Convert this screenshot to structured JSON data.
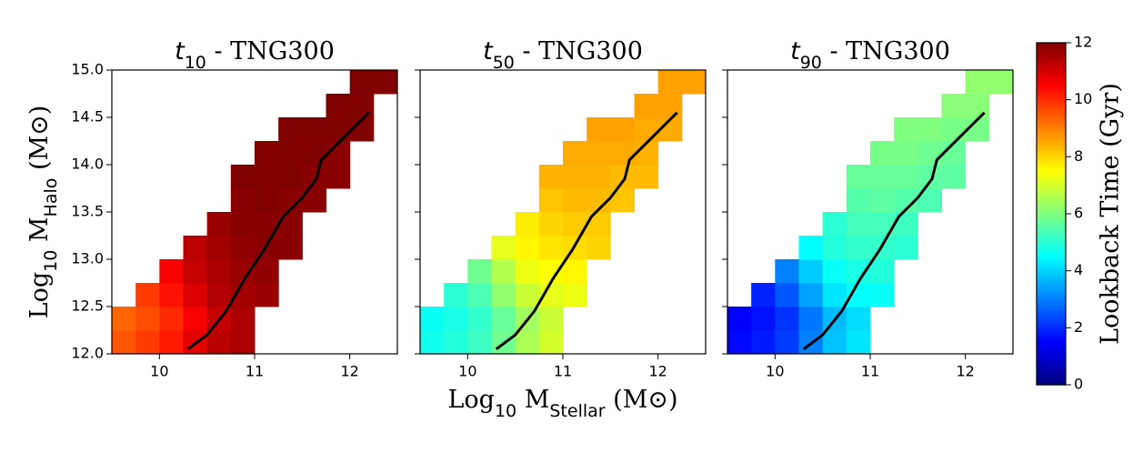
{
  "chart_data": [
    {
      "type": "heatmap",
      "title": [
        "t",
        "10",
        " - TNG300"
      ],
      "ylabel": [
        "Log",
        "10",
        " M",
        "Halo",
        " (M⊙)"
      ],
      "xlim": [
        9.5,
        12.5
      ],
      "ylim": [
        12,
        15
      ],
      "xticks": [
        10,
        11,
        12
      ],
      "yticks": [
        {
          "value": 12,
          "label": "12.0"
        },
        12.5,
        {
          "value": 13,
          "label": "13.0"
        },
        13.5,
        {
          "value": 14,
          "label": "14.0"
        },
        14.5,
        {
          "value": 15,
          "label": "15.0"
        }
      ],
      "x_edges": [
        9.5,
        9.75,
        10,
        10.25,
        10.5,
        10.75,
        11,
        11.25,
        11.5,
        11.75,
        12,
        12.25,
        12.5
      ],
      "y_edges": [
        12,
        12.25,
        12.5,
        12.75,
        13,
        13.25,
        13.5,
        13.75,
        14,
        14.25,
        14.5,
        14.75,
        15
      ],
      "z": [
        [
          9.5,
          9.8,
          10.2,
          10.8,
          11.3,
          11.5,
          null,
          null,
          null,
          null,
          null,
          null
        ],
        [
          9.3,
          9.6,
          10.0,
          10.6,
          11.2,
          11.5,
          null,
          null,
          null,
          null,
          null,
          null
        ],
        [
          null,
          9.8,
          10.3,
          10.9,
          11.4,
          11.6,
          11.7,
          null,
          null,
          null,
          null,
          null
        ],
        [
          null,
          null,
          10.6,
          11.2,
          11.5,
          11.7,
          11.8,
          null,
          null,
          null,
          null,
          null
        ],
        [
          null,
          null,
          null,
          11.3,
          11.6,
          11.8,
          11.9,
          11.9,
          null,
          null,
          null,
          null
        ],
        [
          null,
          null,
          null,
          null,
          11.7,
          11.9,
          11.9,
          11.9,
          null,
          null,
          null,
          null
        ],
        [
          null,
          null,
          null,
          null,
          null,
          11.9,
          12.0,
          11.9,
          11.9,
          null,
          null,
          null
        ],
        [
          null,
          null,
          null,
          null,
          null,
          12.0,
          12.0,
          12.0,
          11.9,
          11.9,
          null,
          null
        ],
        [
          null,
          null,
          null,
          null,
          null,
          null,
          12.0,
          12.0,
          12.0,
          11.9,
          null,
          null
        ],
        [
          null,
          null,
          null,
          null,
          null,
          null,
          null,
          12.0,
          12.0,
          12.0,
          12.0,
          null
        ],
        [
          null,
          null,
          null,
          null,
          null,
          null,
          null,
          null,
          null,
          12.0,
          12.0,
          null
        ],
        [
          null,
          null,
          null,
          null,
          null,
          null,
          null,
          null,
          null,
          null,
          12.0,
          12.0
        ]
      ],
      "line": {
        "color": "#000000",
        "x": [
          10.3,
          10.5,
          10.7,
          10.9,
          11.1,
          11.3,
          11.5,
          11.65,
          11.7,
          11.9,
          12.1,
          12.2
        ],
        "y": [
          12.05,
          12.2,
          12.45,
          12.8,
          13.1,
          13.45,
          13.65,
          13.85,
          14.05,
          14.25,
          14.45,
          14.55
        ]
      }
    },
    {
      "type": "heatmap",
      "title": [
        "t",
        "50",
        " - TNG300"
      ],
      "xlabel": [
        "Log",
        "10",
        " M",
        "Stellar",
        " (M⊙)"
      ],
      "xlim": [
        9.5,
        12.5
      ],
      "ylim": [
        12,
        15
      ],
      "xticks": [
        10,
        11,
        12
      ],
      "yticks": [
        12,
        12.5,
        13,
        13.5,
        14,
        14.5,
        15
      ],
      "x_edges": [
        9.5,
        9.75,
        10,
        10.25,
        10.5,
        10.75,
        11,
        11.25,
        11.5,
        11.75,
        12,
        12.25,
        12.5
      ],
      "y_edges": [
        12,
        12.25,
        12.5,
        12.75,
        13,
        13.25,
        13.5,
        13.75,
        14,
        14.25,
        14.5,
        14.75,
        15
      ],
      "z": [
        [
          4.7,
          4.9,
          5.2,
          5.8,
          6.5,
          7.0,
          null,
          null,
          null,
          null,
          null,
          null
        ],
        [
          4.6,
          4.8,
          5.1,
          5.7,
          6.4,
          6.9,
          null,
          null,
          null,
          null,
          null,
          null
        ],
        [
          null,
          5.0,
          5.4,
          6.2,
          6.9,
          7.2,
          7.3,
          null,
          null,
          null,
          null,
          null
        ],
        [
          null,
          null,
          5.8,
          6.6,
          7.3,
          7.5,
          7.6,
          null,
          null,
          null,
          null,
          null
        ],
        [
          null,
          null,
          null,
          7.2,
          7.6,
          7.8,
          7.9,
          8.0,
          null,
          null,
          null,
          null
        ],
        [
          null,
          null,
          null,
          null,
          7.7,
          8.0,
          8.1,
          8.1,
          null,
          null,
          null,
          null
        ],
        [
          null,
          null,
          null,
          null,
          null,
          8.2,
          8.3,
          8.3,
          8.2,
          null,
          null,
          null
        ],
        [
          null,
          null,
          null,
          null,
          null,
          8.4,
          8.4,
          8.4,
          8.3,
          8.3,
          null,
          null
        ],
        [
          null,
          null,
          null,
          null,
          null,
          null,
          8.5,
          8.5,
          8.5,
          8.4,
          null,
          null
        ],
        [
          null,
          null,
          null,
          null,
          null,
          null,
          null,
          8.6,
          8.6,
          8.5,
          8.5,
          null
        ],
        [
          null,
          null,
          null,
          null,
          null,
          null,
          null,
          null,
          null,
          8.6,
          8.6,
          null
        ],
        [
          null,
          null,
          null,
          null,
          null,
          null,
          null,
          null,
          null,
          null,
          8.6,
          8.6
        ]
      ],
      "line": {
        "color": "#000000",
        "x": [
          10.3,
          10.5,
          10.7,
          10.9,
          11.1,
          11.3,
          11.5,
          11.65,
          11.7,
          11.9,
          12.1,
          12.2
        ],
        "y": [
          12.05,
          12.2,
          12.45,
          12.8,
          13.1,
          13.45,
          13.65,
          13.85,
          14.05,
          14.25,
          14.45,
          14.55
        ]
      }
    },
    {
      "type": "heatmap",
      "title": [
        "t",
        "90",
        " - TNG300"
      ],
      "xlim": [
        9.5,
        12.5
      ],
      "ylim": [
        12,
        15
      ],
      "xticks": [
        10,
        11,
        12
      ],
      "yticks": [
        12,
        12.5,
        13,
        13.5,
        14,
        14.5,
        15
      ],
      "x_edges": [
        9.5,
        9.75,
        10,
        10.25,
        10.5,
        10.75,
        11,
        11.25,
        11.5,
        11.75,
        12,
        12.25,
        12.5
      ],
      "y_edges": [
        12,
        12.25,
        12.5,
        12.75,
        13,
        13.25,
        13.5,
        13.75,
        14,
        14.25,
        14.5,
        14.75,
        15
      ],
      "z": [
        [
          1.6,
          1.8,
          2.2,
          3.0,
          3.8,
          4.2,
          null,
          null,
          null,
          null,
          null,
          null
        ],
        [
          1.5,
          1.7,
          2.1,
          2.9,
          3.7,
          4.1,
          null,
          null,
          null,
          null,
          null,
          null
        ],
        [
          null,
          1.9,
          2.5,
          3.4,
          4.2,
          4.5,
          4.6,
          null,
          null,
          null,
          null,
          null
        ],
        [
          null,
          null,
          3.0,
          3.9,
          4.6,
          4.8,
          4.9,
          null,
          null,
          null,
          null,
          null
        ],
        [
          null,
          null,
          null,
          4.5,
          4.9,
          5.1,
          5.1,
          5.0,
          null,
          null,
          null,
          null
        ],
        [
          null,
          null,
          null,
          null,
          5.0,
          5.3,
          5.3,
          5.2,
          null,
          null,
          null,
          null
        ],
        [
          null,
          null,
          null,
          null,
          null,
          5.5,
          5.6,
          5.5,
          5.4,
          null,
          null,
          null
        ],
        [
          null,
          null,
          null,
          null,
          null,
          5.7,
          5.7,
          5.7,
          5.6,
          5.6,
          null,
          null
        ],
        [
          null,
          null,
          null,
          null,
          null,
          null,
          5.9,
          5.9,
          5.8,
          5.7,
          null,
          null
        ],
        [
          null,
          null,
          null,
          null,
          null,
          null,
          null,
          6.0,
          6.0,
          5.9,
          5.9,
          null
        ],
        [
          null,
          null,
          null,
          null,
          null,
          null,
          null,
          null,
          null,
          6.1,
          6.1,
          null
        ],
        [
          null,
          null,
          null,
          null,
          null,
          null,
          null,
          null,
          null,
          null,
          6.2,
          6.2
        ]
      ],
      "line": {
        "color": "#000000",
        "x": [
          10.3,
          10.5,
          10.7,
          10.9,
          11.1,
          11.3,
          11.5,
          11.65,
          11.7,
          11.9,
          12.1,
          12.2
        ],
        "y": [
          12.05,
          12.2,
          12.45,
          12.8,
          13.1,
          13.45,
          13.65,
          13.85,
          14.05,
          14.25,
          14.45,
          14.55
        ]
      }
    },
    {
      "type": "colorbar",
      "colormap": "jet",
      "label": "Lookback Time (Gyr)",
      "zlim": [
        0,
        12
      ],
      "zticks": [
        0,
        2,
        4,
        6,
        8,
        10,
        12
      ]
    }
  ]
}
